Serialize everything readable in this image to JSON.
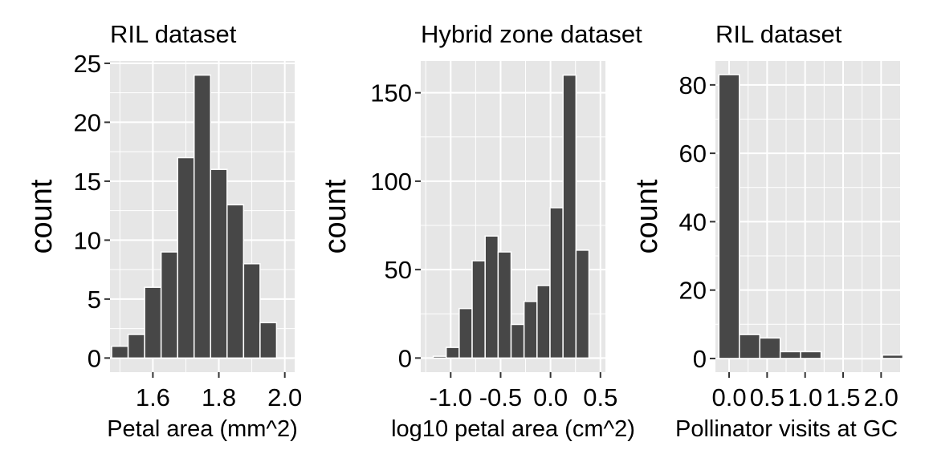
{
  "colors": {
    "panel_background": "#e6e6e6",
    "gridline": "#ffffff",
    "bar_fill": "#474747",
    "bar_outline": "#ffffff"
  },
  "chart_data": [
    {
      "type": "bar",
      "title": "RIL dataset",
      "xlabel": "Petal area (mm^2)",
      "ylabel": "count",
      "xlim": [
        1.47,
        2.03
      ],
      "ylim": [
        -1.2,
        25.2
      ],
      "xticks": [
        "1.6",
        "1.8",
        "2.0"
      ],
      "yticks": [
        "0",
        "5",
        "10",
        "15",
        "20",
        "25"
      ],
      "grid": true,
      "bin_width": 0.05,
      "bin_centers": [
        1.5,
        1.55,
        1.6,
        1.65,
        1.7,
        1.75,
        1.8,
        1.85,
        1.9,
        1.95,
        2.0
      ],
      "values": [
        1,
        2,
        6,
        9,
        17,
        24,
        16,
        13,
        8,
        3,
        0
      ]
    },
    {
      "type": "bar",
      "title": "Hybrid zone dataset",
      "xlabel": "log10 petal area (cm^2)",
      "ylabel": "count",
      "xlim": [
        -1.3,
        0.55
      ],
      "ylim": [
        -8,
        168
      ],
      "xticks": [
        "-1.0",
        "-0.5",
        "0.0",
        "0.5"
      ],
      "yticks": [
        "0",
        "50",
        "100",
        "150"
      ],
      "grid": true,
      "bin_width": 0.13,
      "bin_centers": [
        -1.11,
        -0.98,
        -0.85,
        -0.72,
        -0.59,
        -0.46,
        -0.33,
        -0.2,
        -0.07,
        0.06,
        0.19,
        0.32,
        0.45
      ],
      "values": [
        1,
        6,
        28,
        55,
        69,
        60,
        19,
        32,
        41,
        85,
        160,
        61,
        0
      ]
    },
    {
      "type": "bar",
      "title": "RIL dataset",
      "xlabel": "Pollinator visits at GC",
      "ylabel": "count",
      "xlim": [
        -0.18,
        2.25
      ],
      "ylim": [
        -4,
        87
      ],
      "xticks": [
        "0.0",
        "0.5",
        "1.0",
        "1.5",
        "2.0"
      ],
      "yticks": [
        "0",
        "20",
        "40",
        "60",
        "80"
      ],
      "grid": true,
      "bin_width": 0.269,
      "bin_centers": [
        0.0,
        0.269,
        0.538,
        0.807,
        1.076,
        1.345,
        1.614,
        1.883,
        2.152
      ],
      "values": [
        83,
        7,
        6,
        2,
        2,
        0,
        0,
        0,
        1
      ]
    }
  ]
}
